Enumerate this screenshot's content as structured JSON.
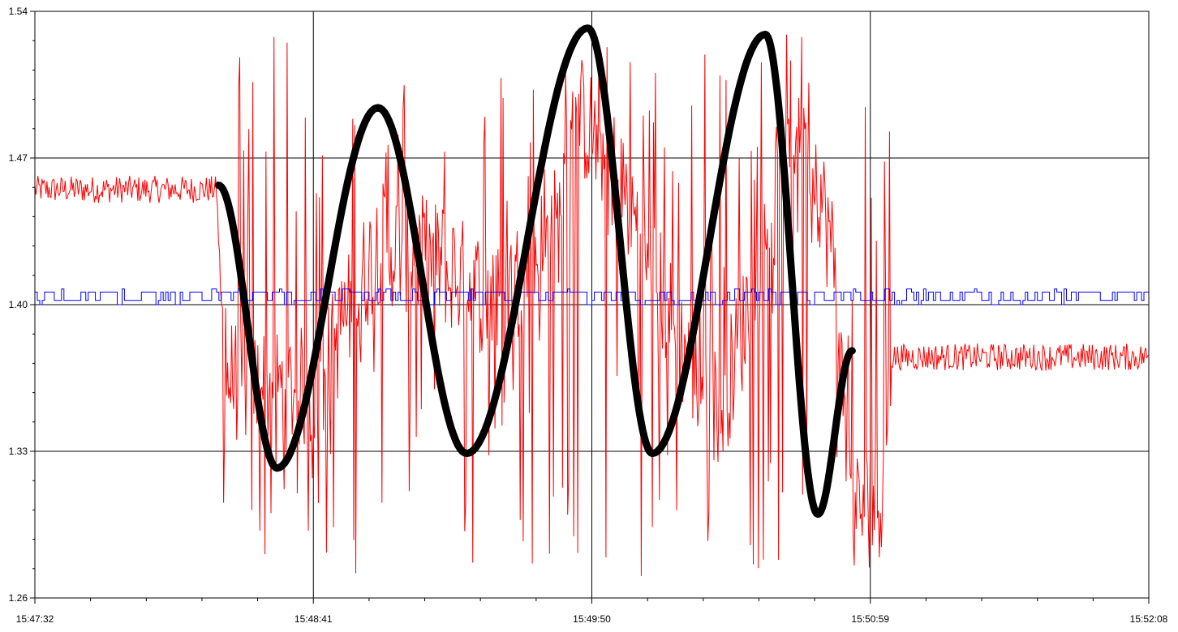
{
  "chart_data": {
    "type": "line",
    "title": "",
    "xlabel": "",
    "ylabel": "",
    "x_tick_labels": [
      "15:47:32",
      "15:48:41",
      "15:49:50",
      "15:50:59",
      "15:52:08"
    ],
    "x_range_seconds": [
      0,
      276
    ],
    "ylim": [
      1.26,
      1.54
    ],
    "y_major_ticks": [
      1.26,
      1.33,
      1.4,
      1.47,
      1.54
    ],
    "y_major_labels": [
      "1.26",
      "1.33",
      "1.40",
      "1.47",
      "1.54"
    ],
    "grid": true,
    "legend": "none",
    "series": [
      {
        "color": "#ff0000",
        "style": "noisy-thin",
        "baseline_points": [
          {
            "t": 0,
            "y": 1.455
          },
          {
            "t": 45,
            "y": 1.455
          },
          {
            "t": 47,
            "y": 1.365
          },
          {
            "t": 58,
            "y": 1.36
          },
          {
            "t": 70,
            "y": 1.36
          },
          {
            "t": 85,
            "y": 1.43
          },
          {
            "t": 100,
            "y": 1.42
          },
          {
            "t": 115,
            "y": 1.4
          },
          {
            "t": 130,
            "y": 1.44
          },
          {
            "t": 132,
            "y": 1.5
          },
          {
            "t": 145,
            "y": 1.46
          },
          {
            "t": 160,
            "y": 1.38
          },
          {
            "t": 170,
            "y": 1.35
          },
          {
            "t": 180,
            "y": 1.42
          },
          {
            "t": 190,
            "y": 1.5
          },
          {
            "t": 198,
            "y": 1.42
          },
          {
            "t": 202,
            "y": 1.3
          },
          {
            "t": 210,
            "y": 1.31
          },
          {
            "t": 212,
            "y": 1.375
          },
          {
            "t": 276,
            "y": 1.375
          }
        ]
      },
      {
        "color": "#0000ff",
        "style": "step-noise",
        "y_low": 1.402,
        "y_high": 1.406
      },
      {
        "color": "#000000",
        "style": "thick-smooth",
        "points": [
          {
            "t": 45.5,
            "y": 1.457
          },
          {
            "t": 60,
            "y": 1.322
          },
          {
            "t": 85,
            "y": 1.494
          },
          {
            "t": 107,
            "y": 1.329
          },
          {
            "t": 137,
            "y": 1.532
          },
          {
            "t": 153,
            "y": 1.329
          },
          {
            "t": 181,
            "y": 1.529
          },
          {
            "t": 194,
            "y": 1.3
          },
          {
            "t": 202.5,
            "y": 1.378
          }
        ]
      }
    ]
  }
}
